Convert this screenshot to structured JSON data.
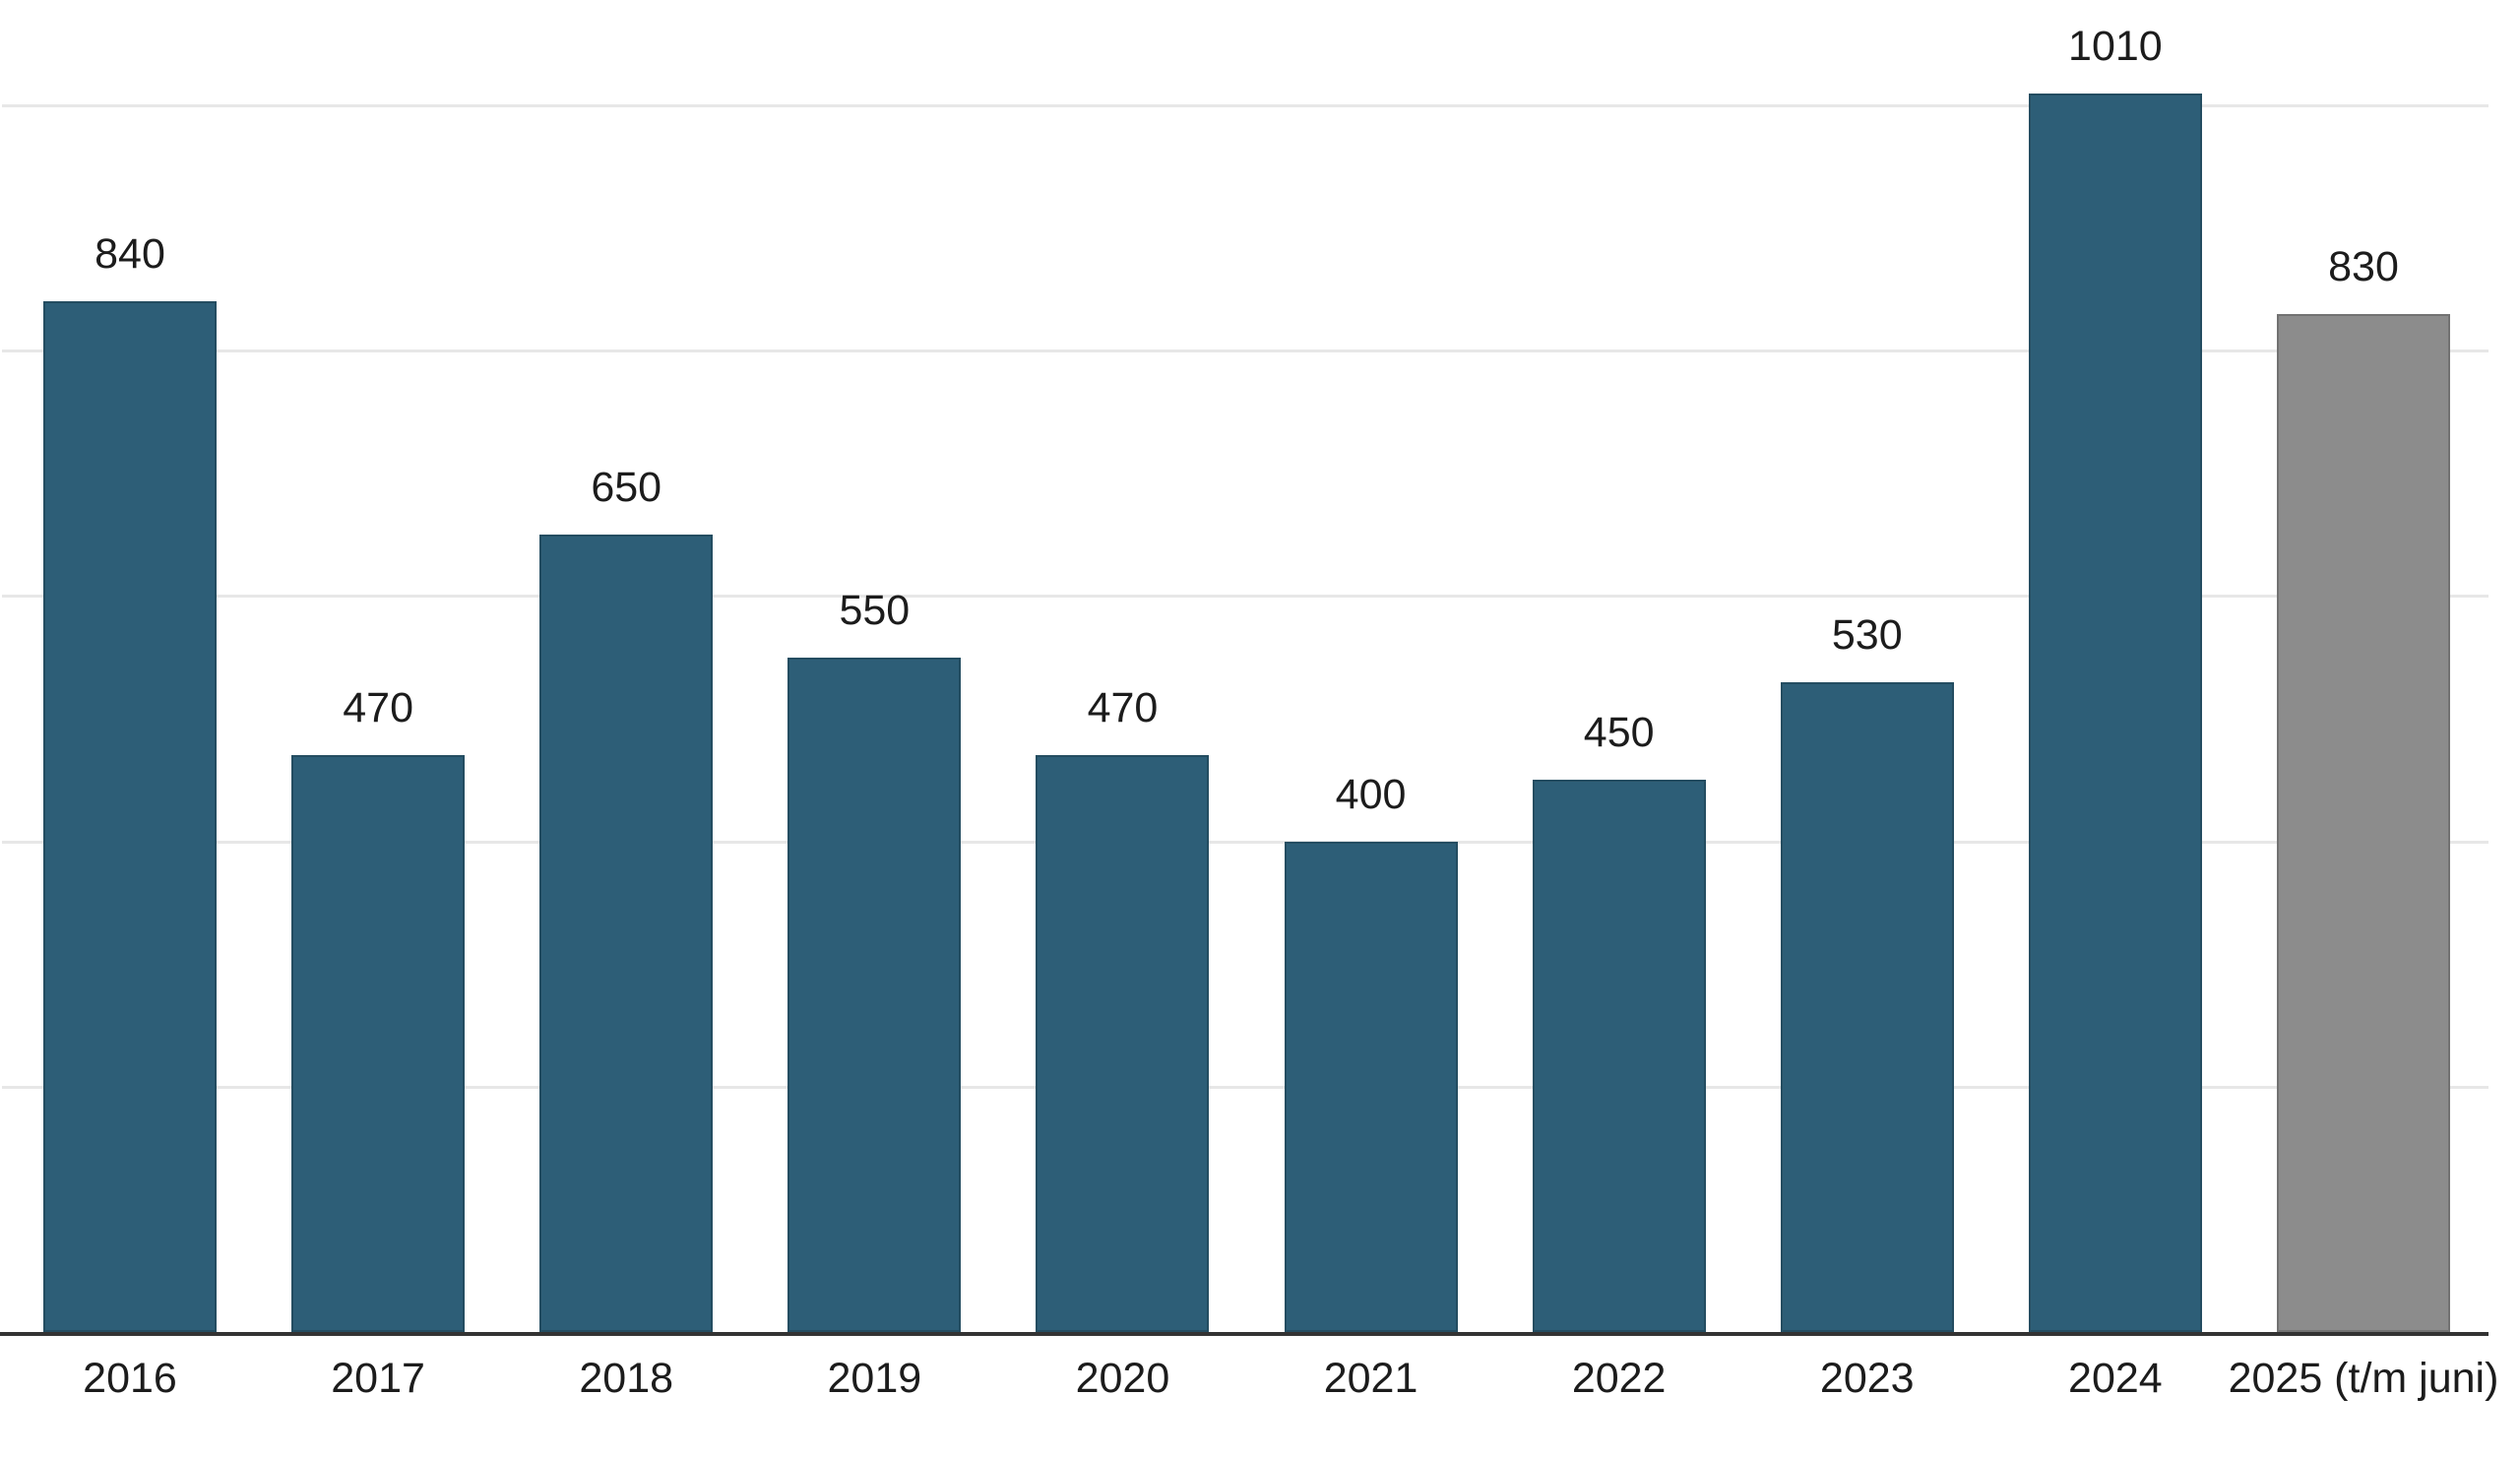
{
  "chart_data": {
    "type": "bar",
    "categories": [
      "2016",
      "2017",
      "2018",
      "2019",
      "2020",
      "2021",
      "2022",
      "2023",
      "2024",
      "2025 (t/m juni)"
    ],
    "values": [
      840,
      470,
      650,
      550,
      470,
      400,
      450,
      530,
      1010,
      830
    ],
    "value_labels": [
      "840",
      "470",
      "650",
      "550",
      "470",
      "400",
      "450",
      "530",
      "1010",
      "830"
    ],
    "bar_colors": [
      "#2d5e77",
      "#2d5e77",
      "#2d5e77",
      "#2d5e77",
      "#2d5e77",
      "#2d5e77",
      "#2d5e77",
      "#2d5e77",
      "#2d5e77",
      "#8c8c8c"
    ],
    "title": "",
    "xlabel": "",
    "ylabel": "",
    "ylim": [
      0,
      1086
    ],
    "gridline_values": [
      200,
      400,
      600,
      800,
      1000
    ],
    "grid": true,
    "legend": "none",
    "value_labels_shown": true,
    "y_axis_tick_labels_shown": false
  },
  "colors": {
    "bar_default": "#2d5e77",
    "bar_final_partial_year": "#8c8c8c",
    "bar_border": "rgba(0,0,0,0.18)",
    "gridline": "#e7e7e7",
    "axis_line": "#333333",
    "label_text": "#1c1c1c",
    "background": "#ffffff"
  }
}
